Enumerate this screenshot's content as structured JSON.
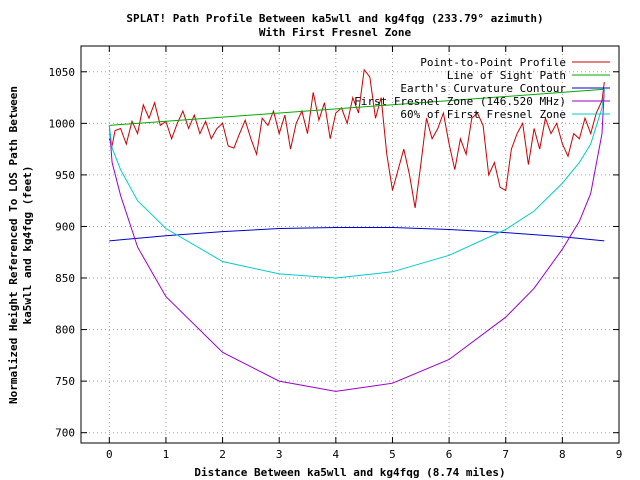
{
  "chart_data": {
    "type": "line",
    "title": "SPLAT! Path Profile Between ka5wll and kg4fqg (233.79° azimuth)",
    "subtitle": "With First Fresnel Zone",
    "xlabel": "Distance Between ka5wll and kg4fqg (8.74 miles)",
    "ylabel_line1": "Normalized Height Referenced To LOS Path Between",
    "ylabel_line2": "ka5wll and kg4fqg (feet)",
    "xlim": [
      -0.5,
      9
    ],
    "ylim": [
      690,
      1075
    ],
    "xticks": [
      0,
      1,
      2,
      3,
      4,
      5,
      6,
      7,
      8,
      9
    ],
    "yticks": [
      700,
      750,
      800,
      850,
      900,
      950,
      1000,
      1050
    ],
    "grid": true,
    "legend_position": "top-right",
    "series": [
      {
        "name": "Point-to-Point Profile",
        "color": "#cc0000",
        "x": [
          0.0,
          0.05,
          0.1,
          0.2,
          0.3,
          0.4,
          0.5,
          0.6,
          0.7,
          0.8,
          0.9,
          1.0,
          1.1,
          1.2,
          1.3,
          1.4,
          1.5,
          1.6,
          1.7,
          1.8,
          1.9,
          2.0,
          2.1,
          2.2,
          2.3,
          2.4,
          2.5,
          2.6,
          2.7,
          2.8,
          2.9,
          3.0,
          3.1,
          3.2,
          3.3,
          3.4,
          3.5,
          3.6,
          3.7,
          3.8,
          3.9,
          4.0,
          4.1,
          4.2,
          4.3,
          4.4,
          4.5,
          4.6,
          4.7,
          4.8,
          4.9,
          5.0,
          5.1,
          5.2,
          5.3,
          5.4,
          5.5,
          5.6,
          5.7,
          5.8,
          5.9,
          6.0,
          6.1,
          6.2,
          6.3,
          6.4,
          6.5,
          6.6,
          6.7,
          6.8,
          6.9,
          7.0,
          7.1,
          7.2,
          7.3,
          7.4,
          7.5,
          7.6,
          7.7,
          7.8,
          7.9,
          8.0,
          8.1,
          8.2,
          8.3,
          8.4,
          8.5,
          8.6,
          8.7,
          8.74
        ],
        "y": [
          985,
          978,
          993,
          995,
          980,
          1002,
          990,
          1018,
          1005,
          1020,
          998,
          1002,
          985,
          1000,
          1012,
          995,
          1008,
          990,
          1002,
          985,
          995,
          1000,
          978,
          976,
          990,
          1003,
          985,
          970,
          1005,
          998,
          1012,
          990,
          1008,
          975,
          1000,
          1012,
          990,
          1030,
          1003,
          1020,
          985,
          1010,
          1015,
          1000,
          1025,
          1010,
          1052,
          1045,
          1005,
          1025,
          970,
          935,
          955,
          975,
          950,
          918,
          960,
          1005,
          985,
          995,
          1010,
          980,
          955,
          985,
          970,
          1005,
          1010,
          998,
          950,
          962,
          938,
          935,
          975,
          990,
          1000,
          960,
          995,
          975,
          1005,
          990,
          1000,
          980,
          968,
          990,
          985,
          1005,
          990,
          1010,
          1022,
          1040
        ]
      },
      {
        "name": "Line of Sight Path",
        "color": "#00aa00",
        "x": [
          0,
          8.74
        ],
        "y": [
          998,
          1033
        ]
      },
      {
        "name": "Earth's Curvature Contour",
        "color": "#0000cc",
        "x": [
          0,
          1,
          2,
          3,
          4,
          5,
          6,
          7,
          8,
          8.74
        ],
        "y": [
          886,
          891,
          895,
          898,
          899,
          899,
          897,
          894,
          890,
          886
        ]
      },
      {
        "name": "First Fresnel Zone (146.520 MHz)",
        "color": "#9900cc",
        "x": [
          0,
          0.05,
          0.2,
          0.5,
          1,
          2,
          3,
          4,
          5,
          6,
          7,
          7.5,
          8,
          8.3,
          8.5,
          8.7,
          8.74
        ],
        "y": [
          998,
          962,
          930,
          880,
          832,
          778,
          750,
          740,
          748,
          771,
          812,
          840,
          878,
          905,
          932,
          990,
          1033
        ]
      },
      {
        "name": "60% of First Fresnel Zone",
        "color": "#00cccc",
        "x": [
          0,
          0.05,
          0.2,
          0.5,
          1,
          2,
          3,
          4,
          5,
          6,
          7,
          7.5,
          8,
          8.3,
          8.5,
          8.7,
          8.74
        ],
        "y": [
          998,
          976,
          955,
          925,
          898,
          866,
          854,
          850,
          856,
          872,
          897,
          915,
          942,
          962,
          980,
          1015,
          1033
        ]
      }
    ]
  }
}
